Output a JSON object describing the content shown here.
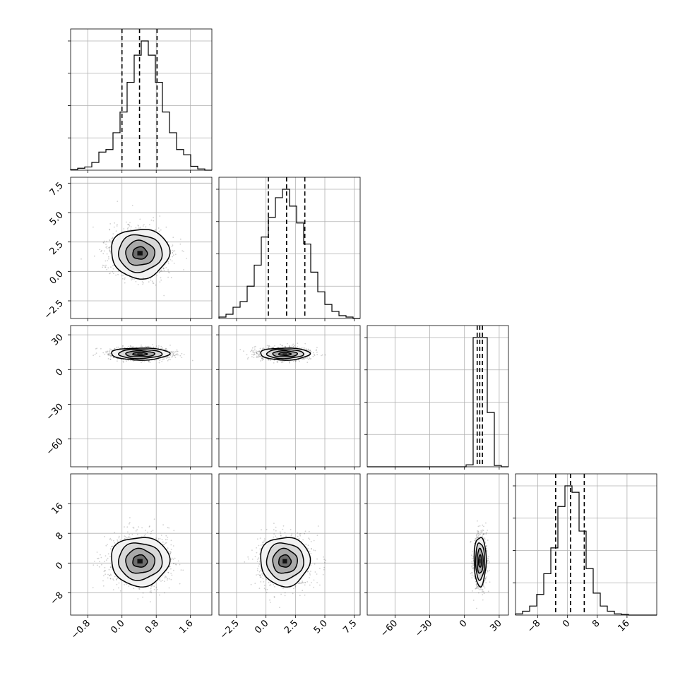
{
  "chart_data": {
    "type": "corner",
    "parameters": [
      {
        "id": "p1",
        "range": [
          -1.2,
          2.1
        ],
        "ticks": [
          -0.8,
          0.0,
          0.8,
          1.6
        ],
        "tick_labels": [
          "−0.8",
          "0.0",
          "0.8",
          "1.6"
        ],
        "quantiles": [
          0.0,
          0.41,
          0.82
        ],
        "hist": {
          "start": -1.2,
          "width": 0.165,
          "counts": [
            0.5,
            1.5,
            2.5,
            6,
            14,
            16,
            29,
            45,
            68,
            89,
            100,
            89,
            68,
            45,
            29,
            16,
            12,
            3,
            1,
            0
          ]
        }
      },
      {
        "id": "p2",
        "range": [
          -4.0,
          8.0
        ],
        "ticks": [
          -2.5,
          0.0,
          2.5,
          5.0,
          7.5
        ],
        "tick_labels": [
          "−2.5",
          "0.0",
          "2.5",
          "5.0",
          "7.5"
        ],
        "quantiles": [
          0.2,
          1.75,
          3.3
        ],
        "hist": {
          "start": -4.0,
          "width": 0.6,
          "counts": [
            1,
            3,
            8,
            12,
            23,
            38,
            58,
            72,
            86,
            92,
            80,
            68,
            53,
            33,
            19,
            10,
            5,
            2,
            1,
            0
          ]
        }
      },
      {
        "id": "p3",
        "range": [
          -84.0,
          38.0
        ],
        "ticks": [
          -60,
          -30,
          0,
          30
        ],
        "tick_labels": [
          "−60",
          "−30",
          "0",
          "30"
        ],
        "quantiles": [
          11.0,
          13.2,
          15.5
        ],
        "hist": {
          "start": -84.0,
          "width": 6.1,
          "counts": [
            0,
            0,
            0,
            0,
            0,
            0,
            0,
            0,
            0,
            0,
            0,
            0,
            0,
            0,
            1.5,
            100,
            100,
            42,
            1,
            0
          ]
        }
      },
      {
        "id": "p4",
        "range": [
          -14.0,
          24.0
        ],
        "ticks": [
          -8,
          0,
          8,
          16
        ],
        "tick_labels": [
          "−8",
          "0",
          "8",
          "16"
        ],
        "quantiles": [
          -3.2,
          0.8,
          4.5
        ],
        "hist": {
          "start": -14.0,
          "width": 1.9,
          "counts": [
            1,
            3,
            7,
            16,
            32,
            52,
            84,
            100,
            95,
            65,
            36,
            17,
            7,
            3,
            1,
            0.5,
            0,
            0,
            0,
            0
          ]
        }
      }
    ],
    "row_ticks": {
      "p2": {
        "ticks": [
          -2.5,
          0.0,
          2.5,
          5.0,
          7.5
        ],
        "tick_labels": [
          "−2.5",
          "0.0",
          "2.5",
          "5.0",
          "7.5"
        ]
      },
      "p3": {
        "ticks": [
          -60,
          -30,
          0,
          30
        ],
        "tick_labels": [
          "−60",
          "−30",
          "0",
          "30"
        ]
      },
      "p4": {
        "ticks": [
          -8,
          0,
          8,
          16
        ],
        "tick_labels": [
          "−8",
          "0",
          "8",
          "16"
        ]
      }
    },
    "joint": [
      {
        "x": "p1",
        "y": "p2",
        "center": [
          0.42,
          1.55
        ],
        "sigma_x": 0.34,
        "sigma_y": 1.05,
        "rho": 0.0
      },
      {
        "x": "p1",
        "y": "p3",
        "center": [
          0.42,
          13.5
        ],
        "sigma_x": 0.34,
        "sigma_y": 2.6,
        "rho": 0.0
      },
      {
        "x": "p2",
        "y": "p3",
        "center": [
          1.6,
          13.5
        ],
        "sigma_x": 1.05,
        "sigma_y": 2.6,
        "rho": 0.0
      },
      {
        "x": "p1",
        "y": "p4",
        "center": [
          0.42,
          0.5
        ],
        "sigma_x": 0.34,
        "sigma_y": 3.3,
        "rho": 0.0
      },
      {
        "x": "p2",
        "y": "p4",
        "center": [
          1.6,
          0.5
        ],
        "sigma_x": 1.05,
        "sigma_y": 3.3,
        "rho": 0.0
      },
      {
        "x": "p3",
        "y": "p4",
        "center": [
          13.5,
          0.5
        ],
        "sigma_x": 2.6,
        "sigma_y": 3.3,
        "rho": 0.0
      }
    ],
    "contour_levels_sigma": [
      0.5,
      1.0,
      1.5,
      2.0
    ],
    "grid": true,
    "title": "",
    "xlabel": "",
    "ylabel": ""
  }
}
